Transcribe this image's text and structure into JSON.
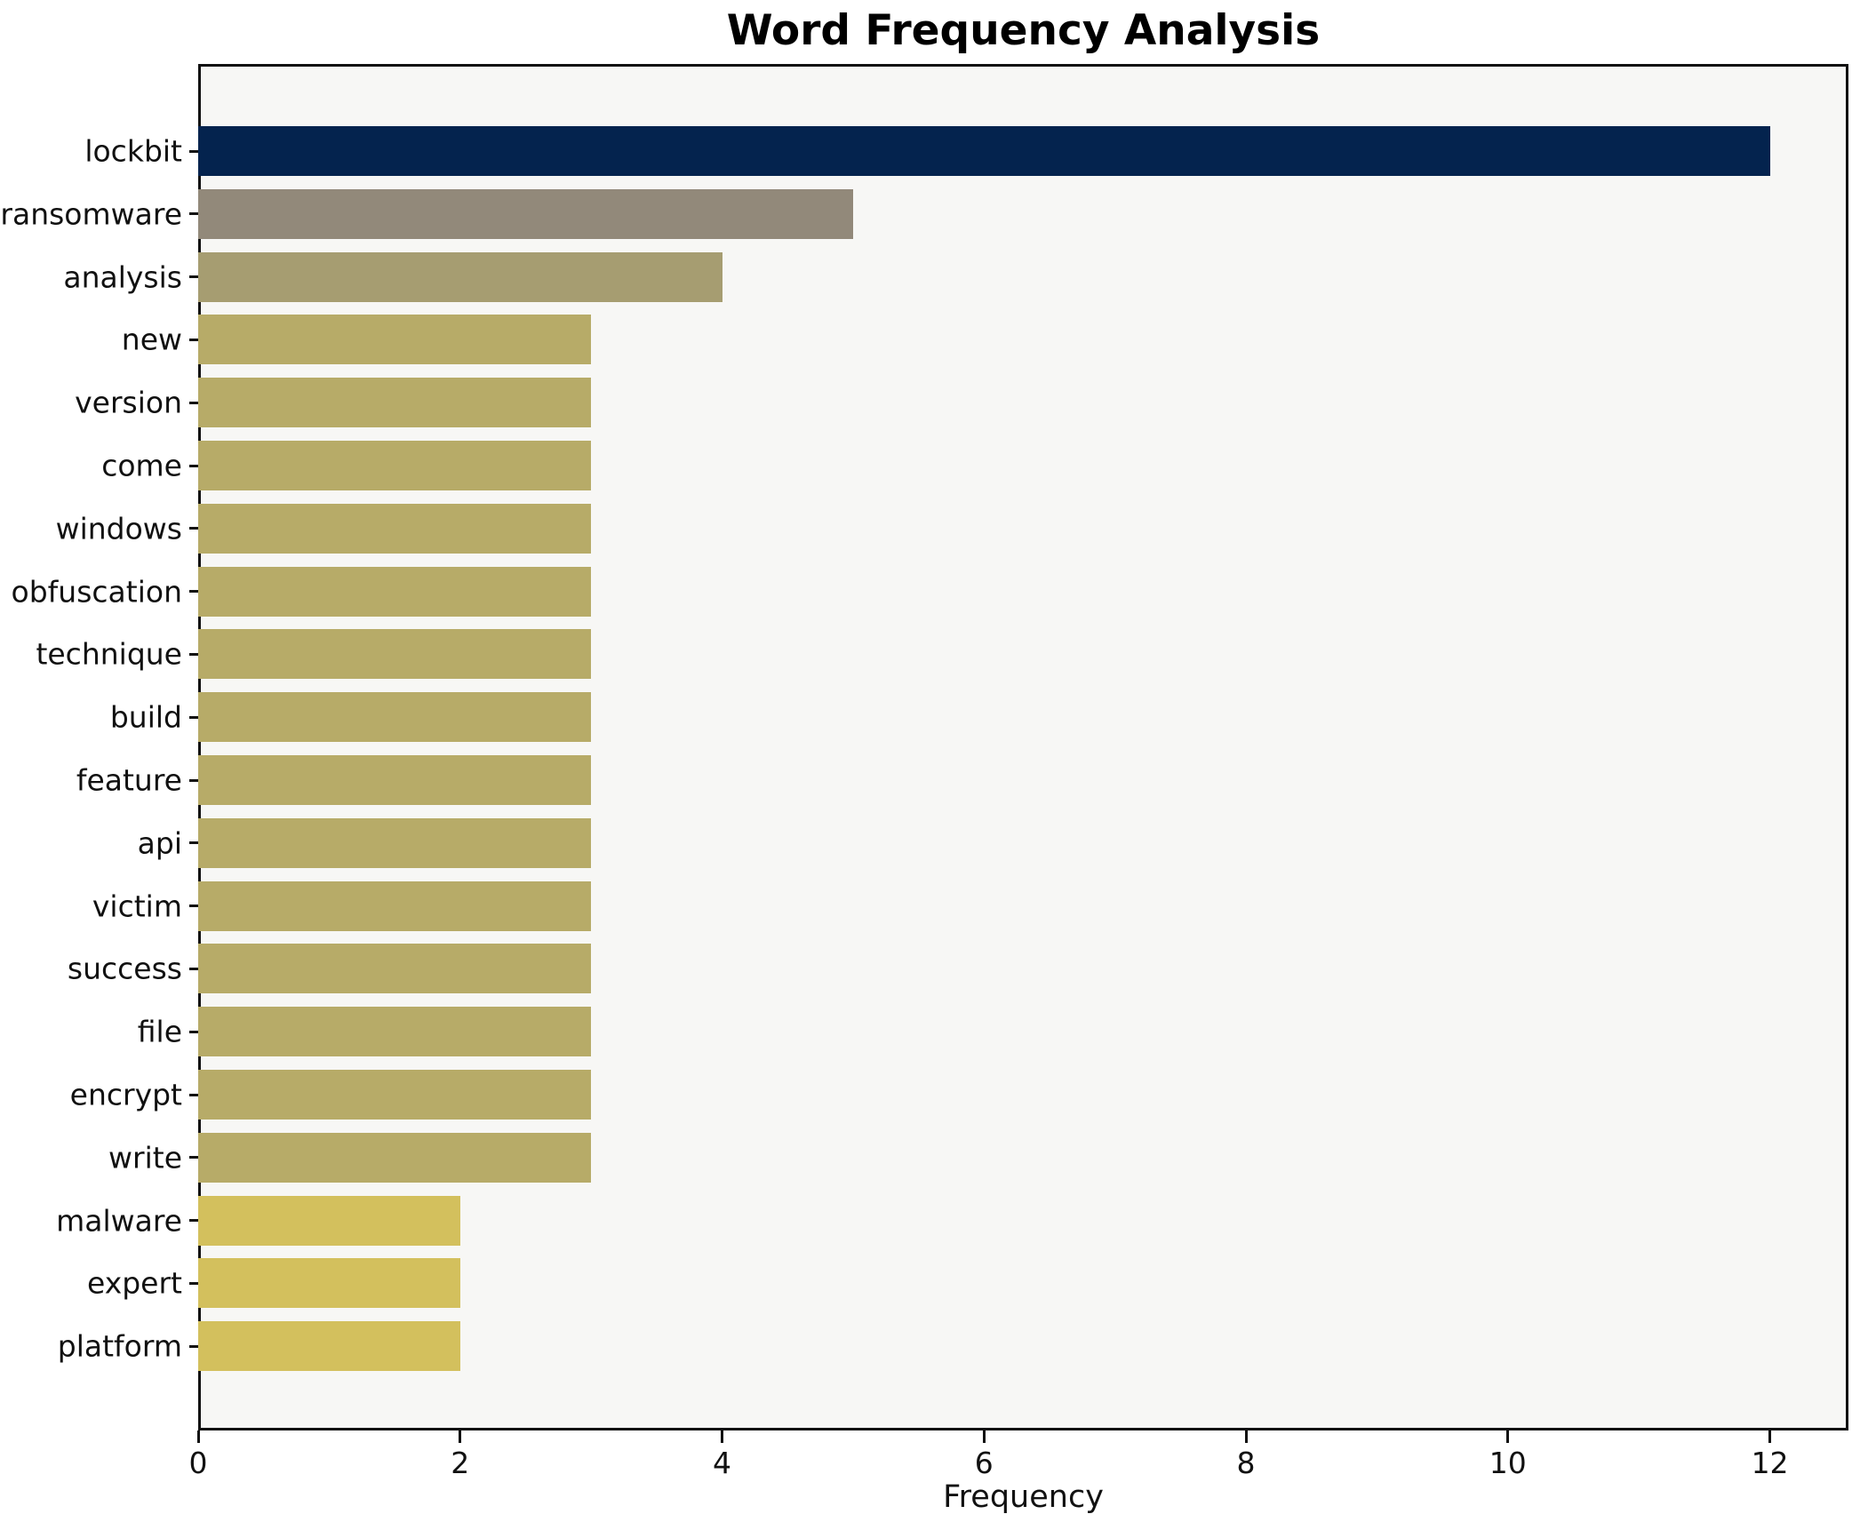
{
  "chart_data": {
    "type": "bar",
    "orientation": "horizontal",
    "title": "Word Frequency Analysis",
    "xlabel": "Frequency",
    "ylabel": "",
    "categories": [
      "lockbit",
      "ransomware",
      "analysis",
      "new",
      "version",
      "come",
      "windows",
      "obfuscation",
      "technique",
      "build",
      "feature",
      "api",
      "victim",
      "success",
      "file",
      "encrypt",
      "write",
      "malware",
      "expert",
      "platform"
    ],
    "values": [
      12,
      5,
      4,
      3,
      3,
      3,
      3,
      3,
      3,
      3,
      3,
      3,
      3,
      3,
      3,
      3,
      3,
      2,
      2,
      2
    ],
    "bar_colors": [
      "#04234e",
      "#92897a",
      "#a69d71",
      "#b7ab68",
      "#b7ab68",
      "#b7ab68",
      "#b7ab68",
      "#b7ab68",
      "#b7ab68",
      "#b7ab68",
      "#b7ab68",
      "#b7ab68",
      "#b7ab68",
      "#b7ab68",
      "#b7ab68",
      "#b7ab68",
      "#b7ab68",
      "#d3c05d",
      "#d3c05d",
      "#d3c05d"
    ],
    "x_ticks": [
      0,
      2,
      4,
      6,
      8,
      10,
      12
    ],
    "xlim": [
      0,
      12.6
    ],
    "grid": false,
    "legend": null,
    "colors": {
      "figure_bg": "#ffffff",
      "plot_bg": "#f7f7f5",
      "spine": "#111111",
      "text": "#111111"
    }
  }
}
